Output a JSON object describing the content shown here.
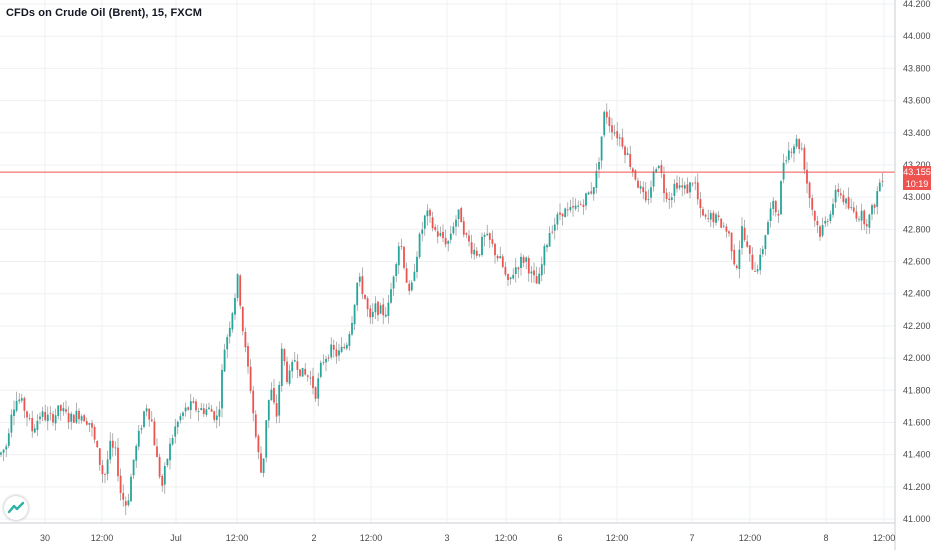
{
  "header": {
    "title": "CFDs on Crude Oil (Brent), 15, FXCM"
  },
  "price_line": {
    "value": 43.155,
    "label": "43.155",
    "countdown": "10:19",
    "color": "#ef5350"
  },
  "colors": {
    "up": "#26a69a",
    "down": "#ef5350",
    "grid": "#eef0f3",
    "wick": "#7f7f7f"
  },
  "logo": {
    "icon": "tradingview-logo-icon"
  },
  "chart_data": {
    "type": "candlestick",
    "title": "CFDs on Crude Oil (Brent), 15, FXCM",
    "interval": "15",
    "ylim": [
      41.0,
      44.2
    ],
    "yticks": [
      "41.000",
      "41.200",
      "41.400",
      "41.600",
      "41.800",
      "42.000",
      "42.200",
      "42.400",
      "42.600",
      "42.800",
      "43.000",
      "43.200",
      "43.400",
      "43.600",
      "43.800",
      "44.000",
      "44.200"
    ],
    "xticks": [
      "30",
      "12:00",
      "Jul",
      "12:00",
      "2",
      "12:00",
      "3",
      "12:00",
      "6",
      "12:00",
      "7",
      "12:00",
      "8",
      "12:00"
    ],
    "close_path": [
      [
        0,
        41.4
      ],
      [
        6,
        41.45
      ],
      [
        12,
        41.7
      ],
      [
        18,
        41.75
      ],
      [
        25,
        41.68
      ],
      [
        32,
        41.55
      ],
      [
        40,
        41.65
      ],
      [
        50,
        41.62
      ],
      [
        60,
        41.68
      ],
      [
        70,
        41.62
      ],
      [
        80,
        41.66
      ],
      [
        90,
        41.6
      ],
      [
        97,
        41.42
      ],
      [
        104,
        41.25
      ],
      [
        110,
        41.45
      ],
      [
        116,
        41.4
      ],
      [
        121,
        41.15
      ],
      [
        127,
        41.08
      ],
      [
        133,
        41.35
      ],
      [
        140,
        41.55
      ],
      [
        146,
        41.72
      ],
      [
        152,
        41.6
      ],
      [
        156,
        41.4
      ],
      [
        162,
        41.2
      ],
      [
        168,
        41.4
      ],
      [
        174,
        41.55
      ],
      [
        182,
        41.65
      ],
      [
        190,
        41.7
      ],
      [
        200,
        41.68
      ],
      [
        210,
        41.68
      ],
      [
        218,
        41.62
      ],
      [
        224,
        42.05
      ],
      [
        231,
        42.25
      ],
      [
        238,
        42.5
      ],
      [
        244,
        42.1
      ],
      [
        250,
        41.85
      ],
      [
        256,
        41.5
      ],
      [
        262,
        41.25
      ],
      [
        267,
        41.7
      ],
      [
        272,
        41.8
      ],
      [
        276,
        41.6
      ],
      [
        282,
        42.05
      ],
      [
        288,
        41.85
      ],
      [
        295,
        42.0
      ],
      [
        302,
        41.9
      ],
      [
        310,
        41.88
      ],
      [
        316,
        41.78
      ],
      [
        322,
        41.98
      ],
      [
        330,
        42.05
      ],
      [
        338,
        42.02
      ],
      [
        346,
        42.08
      ],
      [
        352,
        42.25
      ],
      [
        358,
        42.5
      ],
      [
        364,
        42.4
      ],
      [
        370,
        42.22
      ],
      [
        376,
        42.32
      ],
      [
        382,
        42.28
      ],
      [
        388,
        42.3
      ],
      [
        394,
        42.55
      ],
      [
        400,
        42.75
      ],
      [
        405,
        42.55
      ],
      [
        410,
        42.35
      ],
      [
        415,
        42.6
      ],
      [
        420,
        42.75
      ],
      [
        426,
        42.9
      ],
      [
        430,
        42.85
      ],
      [
        436,
        42.78
      ],
      [
        442,
        42.75
      ],
      [
        448,
        42.72
      ],
      [
        454,
        42.85
      ],
      [
        460,
        42.9
      ],
      [
        466,
        42.75
      ],
      [
        472,
        42.68
      ],
      [
        478,
        42.65
      ],
      [
        484,
        42.75
      ],
      [
        490,
        42.72
      ],
      [
        496,
        42.65
      ],
      [
        502,
        42.58
      ],
      [
        508,
        42.45
      ],
      [
        514,
        42.55
      ],
      [
        520,
        42.6
      ],
      [
        526,
        42.62
      ],
      [
        532,
        42.5
      ],
      [
        538,
        42.45
      ],
      [
        544,
        42.65
      ],
      [
        550,
        42.8
      ],
      [
        556,
        42.85
      ],
      [
        562,
        42.92
      ],
      [
        568,
        42.9
      ],
      [
        574,
        42.92
      ],
      [
        580,
        42.95
      ],
      [
        586,
        43.0
      ],
      [
        592,
        43.05
      ],
      [
        597,
        43.15
      ],
      [
        601,
        43.35
      ],
      [
        605,
        43.55
      ],
      [
        610,
        43.45
      ],
      [
        616,
        43.4
      ],
      [
        622,
        43.35
      ],
      [
        628,
        43.25
      ],
      [
        634,
        43.15
      ],
      [
        640,
        43.05
      ],
      [
        646,
        42.95
      ],
      [
        652,
        43.1
      ],
      [
        658,
        43.25
      ],
      [
        664,
        43.05
      ],
      [
        670,
        43.0
      ],
      [
        676,
        43.1
      ],
      [
        682,
        43.05
      ],
      [
        688,
        43.05
      ],
      [
        694,
        43.12
      ],
      [
        700,
        42.9
      ],
      [
        706,
        42.85
      ],
      [
        712,
        42.88
      ],
      [
        718,
        42.85
      ],
      [
        724,
        42.82
      ],
      [
        730,
        42.75
      ],
      [
        736,
        42.55
      ],
      [
        742,
        42.8
      ],
      [
        748,
        42.65
      ],
      [
        754,
        42.55
      ],
      [
        760,
        42.6
      ],
      [
        766,
        42.8
      ],
      [
        772,
        42.95
      ],
      [
        778,
        42.9
      ],
      [
        784,
        43.25
      ],
      [
        790,
        43.3
      ],
      [
        796,
        43.35
      ],
      [
        802,
        43.3
      ],
      [
        808,
        43.05
      ],
      [
        814,
        42.88
      ],
      [
        820,
        42.78
      ],
      [
        826,
        42.85
      ],
      [
        832,
        42.95
      ],
      [
        838,
        43.05
      ],
      [
        844,
        42.98
      ],
      [
        850,
        42.92
      ],
      [
        856,
        42.9
      ],
      [
        862,
        42.88
      ],
      [
        868,
        42.85
      ],
      [
        874,
        42.95
      ],
      [
        880,
        43.1
      ],
      [
        884,
        43.155
      ]
    ]
  }
}
